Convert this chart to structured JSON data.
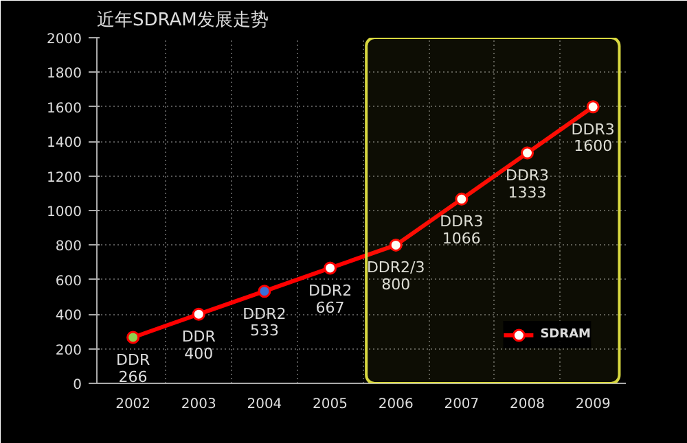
{
  "chart_data": {
    "type": "line",
    "title": "近年SDRAM发展走势",
    "categories": [
      "2002",
      "2003",
      "2004",
      "2005",
      "2006",
      "2007",
      "2008",
      "2009"
    ],
    "series": [
      {
        "name": "SDRAM",
        "color": "#ff0000",
        "colors": [
          "#8fd14f",
          "#ffffff",
          "#3a6fd8",
          "#ffffff",
          "#ffffff",
          "#ffffff",
          "#ffffff",
          "#ffffff"
        ],
        "values": [
          266,
          400,
          533,
          667,
          800,
          1066,
          1333,
          1600
        ],
        "value_labels": [
          "DDR\n266",
          "DDR\n400",
          "DDR2\n533",
          "DDR2\n667",
          "DDR2/3\n800",
          "DDR3\n1066",
          "DDR3\n1333",
          "DDR3\n1600"
        ]
      }
    ],
    "ylim": [
      0,
      2000
    ],
    "yticks": [
      0,
      200,
      400,
      600,
      800,
      1000,
      1200,
      1400,
      1600,
      1800,
      2000
    ],
    "bands": [
      {
        "axis": "x",
        "from": "2006",
        "to": "2009",
        "color": "#d8d840"
      }
    ],
    "grid": true,
    "legend": "bottom right",
    "marker": "circle",
    "line_style": "solid"
  }
}
